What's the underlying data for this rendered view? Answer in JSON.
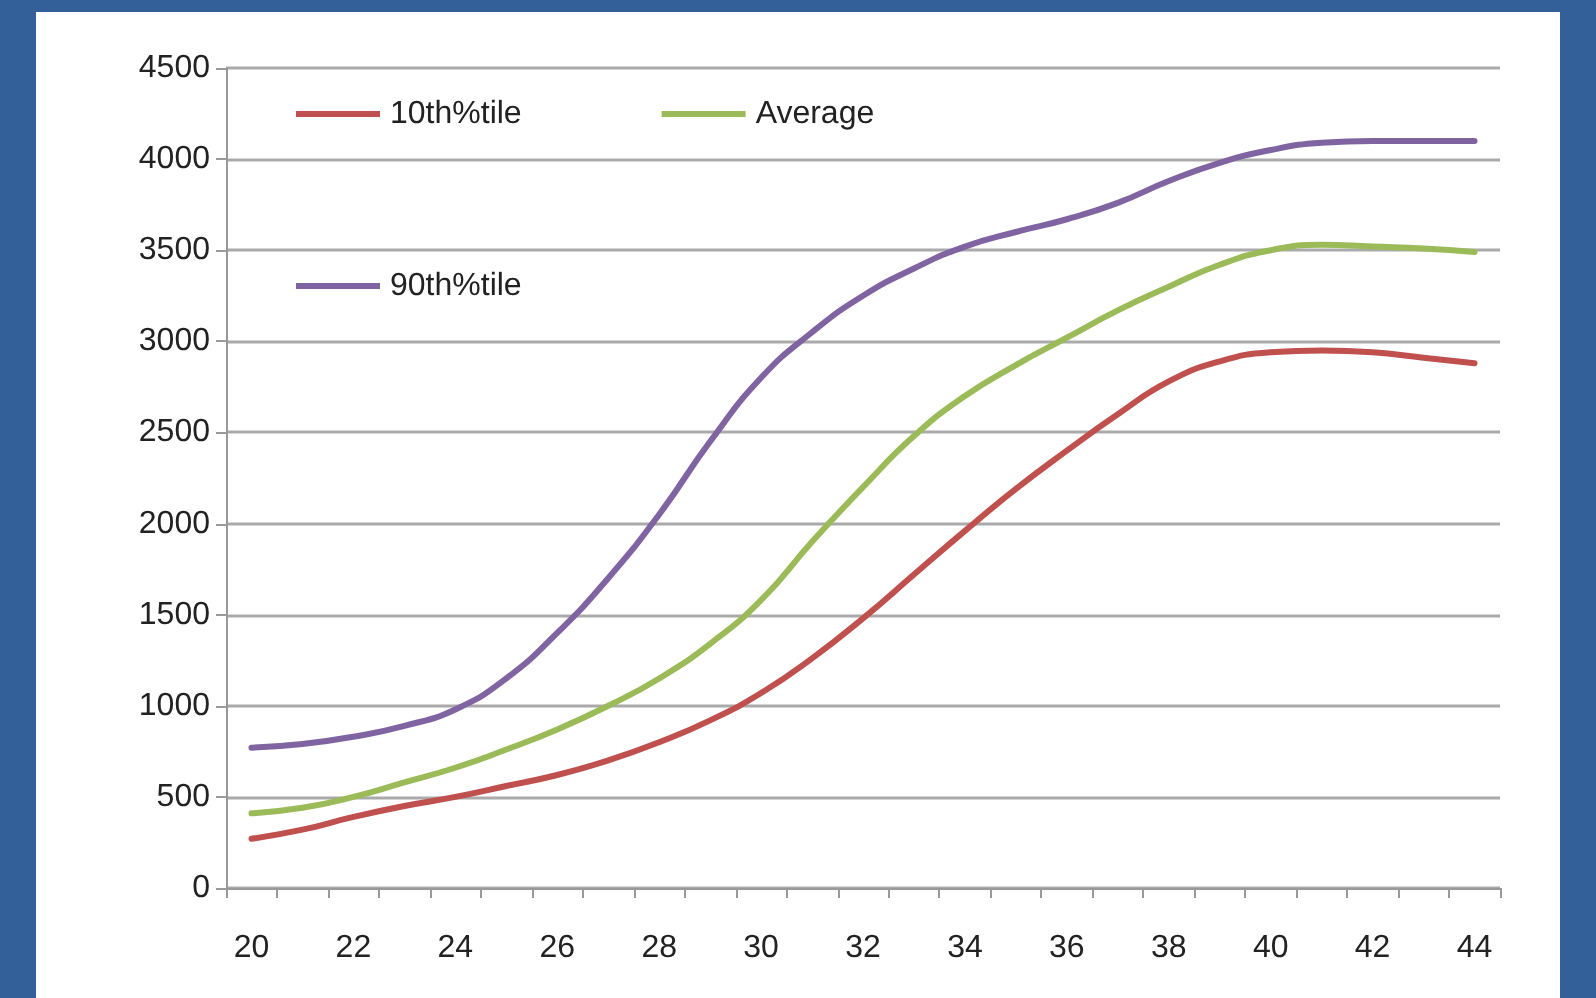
{
  "chart_data": {
    "type": "line",
    "categories": [
      "20",
      null,
      "22",
      null,
      "24",
      null,
      "26",
      null,
      "28",
      null,
      "30",
      null,
      "32",
      null,
      "34",
      null,
      "36",
      null,
      "38",
      null,
      "40",
      null,
      "42",
      null,
      "44"
    ],
    "series": [
      {
        "name": "10th%tile",
        "color": "#c0504d",
        "values": [
          270,
          320,
          390,
          450,
          500,
          560,
          620,
          700,
          800,
          920,
          1070,
          1260,
          1480,
          1720,
          1960,
          2190,
          2400,
          2600,
          2780,
          2890,
          2940,
          2950,
          2940,
          2910,
          2880
        ]
      },
      {
        "name": "Average",
        "color": "#9bbb59",
        "values": [
          410,
          440,
          500,
          580,
          660,
          760,
          870,
          1000,
          1150,
          1340,
          1580,
          1900,
          2200,
          2480,
          2700,
          2870,
          3020,
          3170,
          3300,
          3420,
          3500,
          3530,
          3520,
          3510,
          3490
        ]
      },
      {
        "name": "90th%tile",
        "color": "#8064a2",
        "values": [
          770,
          790,
          830,
          890,
          980,
          1150,
          1400,
          1700,
          2050,
          2450,
          2800,
          3050,
          3250,
          3400,
          3520,
          3600,
          3670,
          3760,
          3880,
          3980,
          4050,
          4090,
          4100,
          4100,
          4100
        ]
      }
    ],
    "ylim": [
      0,
      4500
    ],
    "yticks": [
      0,
      500,
      1000,
      1500,
      2000,
      2500,
      3000,
      3500,
      4000,
      4500
    ],
    "grid": "y",
    "legend": "top left",
    "marker": "none",
    "line_style": "solid"
  }
}
